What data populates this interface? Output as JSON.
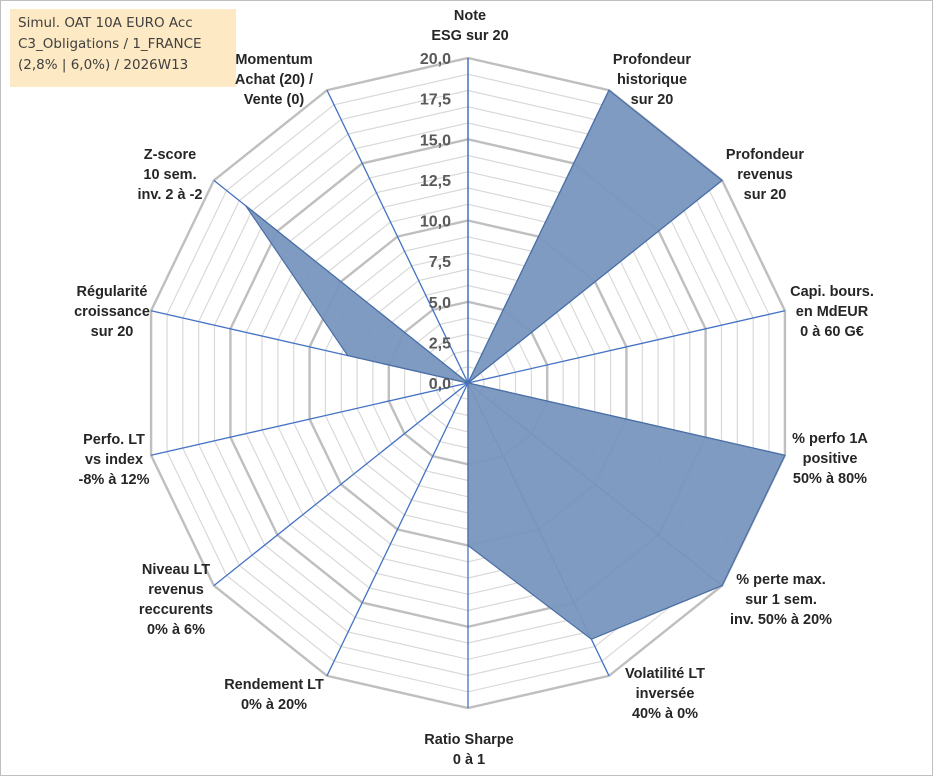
{
  "info_box": {
    "line1": "Simul. OAT 10A EURO Acc",
    "line2": "C3_Obligations / 1_FRANCE",
    "line3": "(2,8% | 6,0%) / 2026W13"
  },
  "chart_data": {
    "type": "radar",
    "r_min": 0,
    "r_max": 20,
    "ticks": [
      "0,0",
      "2,5",
      "5,0",
      "7,5",
      "10,0",
      "12,5",
      "15,0",
      "17,5",
      "20,0"
    ],
    "tick_values": [
      0,
      2.5,
      5,
      7.5,
      10,
      12.5,
      15,
      17.5,
      20
    ],
    "grid_rings": 20,
    "axes": [
      {
        "label": [
          "Note",
          "ESG sur 20"
        ],
        "value": 0
      },
      {
        "label": [
          "Profondeur",
          "historique",
          "sur 20"
        ],
        "value": 20
      },
      {
        "label": [
          "Profondeur",
          "revenus",
          "sur 20"
        ],
        "value": 20
      },
      {
        "label": [
          "Capi. bours.",
          "en MdEUR",
          "0 à 60 G€"
        ],
        "value": 0
      },
      {
        "label": [
          "% perfo 1A",
          "positive",
          "50% à 80%"
        ],
        "value": 20
      },
      {
        "label": [
          "% perte max.",
          "sur 1 sem.",
          "inv. 50% à 20%"
        ],
        "value": 20
      },
      {
        "label": [
          "Volatilité LT",
          "inversée",
          "40% à 0%"
        ],
        "value": 17.5
      },
      {
        "label": [
          "Ratio Sharpe",
          "0 à 1"
        ],
        "value": 10
      },
      {
        "label": [
          "Rendement LT",
          "0% à 20%"
        ],
        "value": 0
      },
      {
        "label": [
          "Niveau LT",
          "revenus",
          "reccurents",
          "0% à 6%"
        ],
        "value": 0
      },
      {
        "label": [
          "Perfo. LT",
          "vs index",
          "-8% à 12%"
        ],
        "value": 0
      },
      {
        "label": [
          "Régularité",
          "croissance",
          "sur 20"
        ],
        "value": 7.6
      },
      {
        "label": [
          "Z-score",
          "10 sem.",
          "inv. 2 à -2"
        ],
        "value": 17.5
      },
      {
        "label": [
          "Momentum",
          "Achat (20) /",
          "Vente (0)"
        ],
        "value": 0
      }
    ],
    "colors": {
      "fill": "#7896be",
      "outline": "#4a6fa5",
      "spoke": "#4472c4",
      "grid_major": "#bfbfbf",
      "grid_minor": "#d9d9d9"
    }
  }
}
